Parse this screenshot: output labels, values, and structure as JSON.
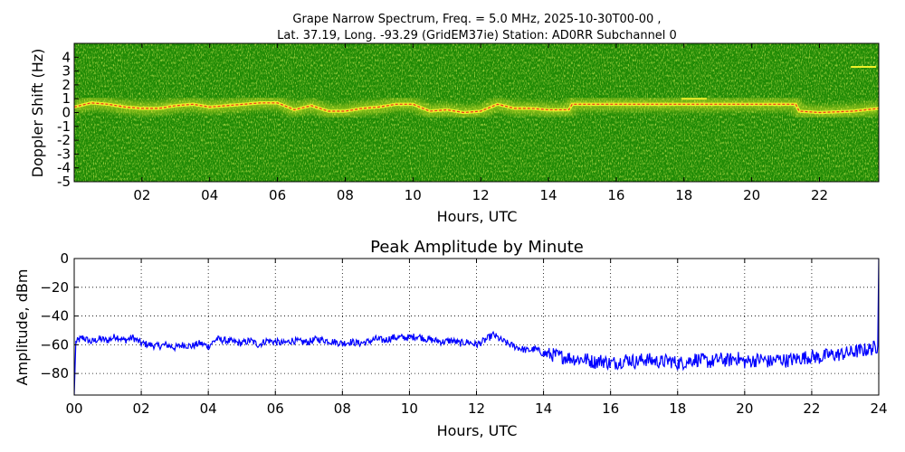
{
  "header": {
    "line1": "Grape Narrow Spectrum, Freq. = 5.0 MHz, 2025-10-30T00-00 ,",
    "line2": "Lat.  37.19, Long. -93.29 (GridEM37ie) Station: AD0RR Subchannel 0"
  },
  "colors": {
    "spectrum_background": "#1f8a05",
    "spectrum_noise": "#7fbf12",
    "trace_yellow": "#f0ef2a",
    "trace_red": "#e8361a",
    "line_blue": "#0000ff",
    "grid": "#000000"
  },
  "chart_data": [
    {
      "type": "heatmap",
      "title": "",
      "xlabel": "Hours, UTC",
      "ylabel": "Doppler Shift (Hz)",
      "xlim": [
        0,
        23.75
      ],
      "ylim": [
        -5,
        5
      ],
      "x_ticks": [
        {
          "value": 2,
          "label": "02"
        },
        {
          "value": 4,
          "label": "04"
        },
        {
          "value": 6,
          "label": "06"
        },
        {
          "value": 8,
          "label": "08"
        },
        {
          "value": 10,
          "label": "10"
        },
        {
          "value": 12,
          "label": "12"
        },
        {
          "value": 14,
          "label": "14"
        },
        {
          "value": 16,
          "label": "16"
        },
        {
          "value": 18,
          "label": "18"
        },
        {
          "value": 20,
          "label": "20"
        },
        {
          "value": 22,
          "label": "22"
        }
      ],
      "y_ticks": [
        {
          "value": 4,
          "label": "4"
        },
        {
          "value": 3,
          "label": "3"
        },
        {
          "value": 2,
          "label": "2"
        },
        {
          "value": 1,
          "label": "1"
        },
        {
          "value": 0,
          "label": "0"
        },
        {
          "value": -1,
          "label": "-1"
        },
        {
          "value": -2,
          "label": "-2"
        },
        {
          "value": -3,
          "label": "-3"
        },
        {
          "value": -4,
          "label": "-4"
        },
        {
          "value": -5,
          "label": "-5"
        }
      ],
      "doppler_trace": {
        "x": [
          0,
          0.5,
          1,
          1.5,
          2,
          2.5,
          3,
          3.5,
          4,
          4.5,
          5,
          5.5,
          6,
          6.5,
          7,
          7.5,
          8,
          8.5,
          9,
          9.5,
          10,
          10.5,
          11,
          11.5,
          12,
          12.5,
          13,
          13.5,
          14,
          14.6,
          14.7,
          16,
          18,
          20,
          21.3,
          21.4,
          22,
          23,
          23.75
        ],
        "y": [
          0.4,
          0.7,
          0.6,
          0.4,
          0.3,
          0.3,
          0.5,
          0.6,
          0.4,
          0.5,
          0.6,
          0.7,
          0.7,
          0.2,
          0.5,
          0.1,
          0.1,
          0.3,
          0.4,
          0.6,
          0.6,
          0.1,
          0.2,
          0.0,
          0.1,
          0.6,
          0.3,
          0.3,
          0.2,
          0.2,
          0.6,
          0.6,
          0.6,
          0.6,
          0.6,
          0.1,
          0.0,
          0.1,
          0.3
        ]
      },
      "features": [
        {
          "x": 23.3,
          "y": 3.3
        },
        {
          "x": 18.3,
          "y": 1.0
        }
      ]
    },
    {
      "type": "line",
      "title": "Peak Amplitude by Minute",
      "xlabel": "Hours, UTC",
      "ylabel": "Amplitude, dBm",
      "xlim": [
        0,
        24
      ],
      "ylim": [
        -95,
        0
      ],
      "grid": true,
      "x_ticks": [
        {
          "value": 0,
          "label": "00"
        },
        {
          "value": 2,
          "label": "02"
        },
        {
          "value": 4,
          "label": "04"
        },
        {
          "value": 6,
          "label": "06"
        },
        {
          "value": 8,
          "label": "08"
        },
        {
          "value": 10,
          "label": "10"
        },
        {
          "value": 12,
          "label": "12"
        },
        {
          "value": 14,
          "label": "14"
        },
        {
          "value": 16,
          "label": "16"
        },
        {
          "value": 18,
          "label": "18"
        },
        {
          "value": 20,
          "label": "20"
        },
        {
          "value": 22,
          "label": "22"
        },
        {
          "value": 24,
          "label": "24"
        }
      ],
      "y_ticks": [
        {
          "value": 0,
          "label": "0"
        },
        {
          "value": -20,
          "label": "−20"
        },
        {
          "value": -40,
          "label": "−40"
        },
        {
          "value": -60,
          "label": "−60"
        },
        {
          "value": -80,
          "label": "−80"
        }
      ],
      "series": [
        {
          "x": [
            0,
            0.05,
            0.25,
            0.5,
            0.75,
            1,
            1.25,
            1.5,
            1.75,
            2,
            2.25,
            2.5,
            2.75,
            3,
            3.25,
            3.5,
            3.75,
            4,
            4.25,
            4.5,
            4.75,
            5,
            5.25,
            5.5,
            5.75,
            6,
            6.25,
            6.5,
            6.75,
            7,
            7.25,
            7.5,
            7.75,
            8,
            8.25,
            8.5,
            8.75,
            9,
            9.25,
            9.5,
            9.75,
            10,
            10.25,
            10.5,
            10.75,
            11,
            11.25,
            11.5,
            11.75,
            12,
            12.25,
            12.5,
            12.75,
            13,
            13.25,
            13.5,
            13.75,
            14,
            14.25,
            14.5,
            14.75,
            15,
            15.25,
            15.5,
            15.75,
            16,
            16.25,
            16.5,
            16.75,
            17,
            17.25,
            17.5,
            17.75,
            18,
            18.25,
            18.5,
            18.75,
            19,
            19.25,
            19.5,
            19.75,
            20,
            20.25,
            20.5,
            20.75,
            21,
            21.25,
            21.5,
            21.75,
            22,
            22.25,
            22.5,
            22.75,
            23,
            23.25,
            23.5,
            23.75,
            23.97,
            24
          ],
          "values": [
            -95,
            -58,
            -55,
            -58,
            -56,
            -57,
            -54,
            -57,
            -55,
            -59,
            -60,
            -61,
            -60,
            -62,
            -60,
            -61,
            -59,
            -61,
            -56,
            -57,
            -58,
            -59,
            -57,
            -60,
            -57,
            -58,
            -59,
            -57,
            -58,
            -58,
            -56,
            -57,
            -58,
            -59,
            -58,
            -59,
            -58,
            -56,
            -57,
            -55,
            -55,
            -55,
            -54,
            -56,
            -57,
            -58,
            -57,
            -59,
            -58,
            -60,
            -57,
            -53,
            -57,
            -60,
            -62,
            -64,
            -63,
            -66,
            -67,
            -68,
            -69,
            -70,
            -70,
            -72,
            -71,
            -73,
            -72,
            -70,
            -72,
            -70,
            -71,
            -72,
            -71,
            -73,
            -72,
            -70,
            -71,
            -72,
            -70,
            -71,
            -69,
            -72,
            -71,
            -70,
            -72,
            -70,
            -71,
            -70,
            -69,
            -68,
            -69,
            -67,
            -67,
            -66,
            -65,
            -64,
            -63,
            -61,
            0
          ]
        }
      ]
    }
  ]
}
